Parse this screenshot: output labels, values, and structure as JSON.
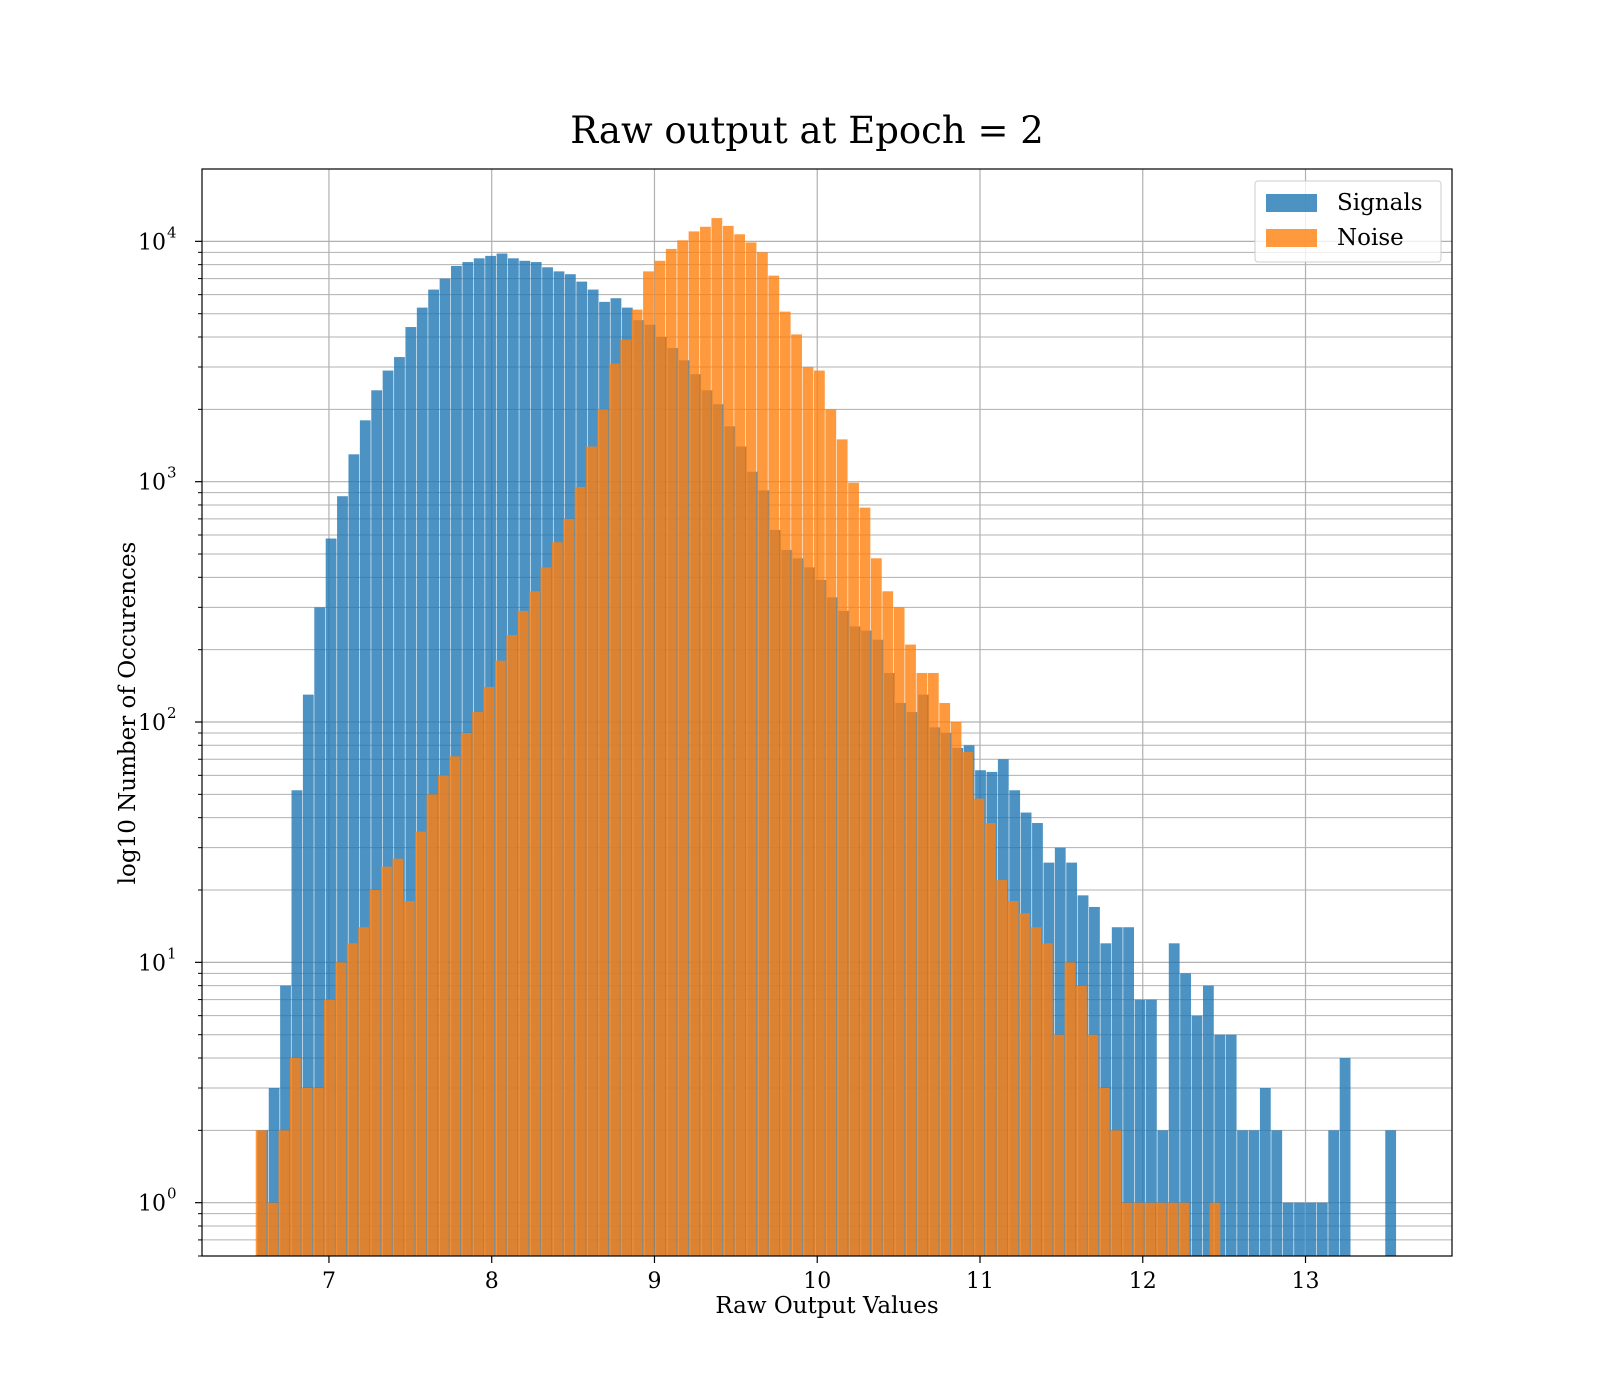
{
  "chart_data": {
    "type": "bar",
    "title": "Raw output at Epoch = 2",
    "xlabel": "Raw Output Values",
    "ylabel": "log10 Number of Occurences",
    "xlim": [
      6.22,
      13.9
    ],
    "ylim": [
      0.6,
      20000
    ],
    "yscale": "log",
    "grid": true,
    "grid_minor": true,
    "legend_position": "top-right",
    "x_ticks": [
      7,
      8,
      9,
      10,
      11,
      12,
      13
    ],
    "y_ticks": [
      {
        "value": 1,
        "base": "10",
        "exp": "0"
      },
      {
        "value": 10,
        "base": "10",
        "exp": "1"
      },
      {
        "value": 100,
        "base": "10",
        "exp": "2"
      },
      {
        "value": 1000,
        "base": "10",
        "exp": "3"
      },
      {
        "value": 10000,
        "base": "10",
        "exp": "4"
      }
    ],
    "series": [
      {
        "name": "Signals",
        "color": "#1f77b4",
        "opacity": 0.8,
        "bins": [
          [
            6.56,
            6.63,
            2
          ],
          [
            6.63,
            6.7,
            3
          ],
          [
            6.7,
            6.77,
            8
          ],
          [
            6.77,
            6.84,
            52
          ],
          [
            6.84,
            6.91,
            130
          ],
          [
            6.91,
            6.98,
            300
          ],
          [
            6.98,
            7.05,
            580
          ],
          [
            7.05,
            7.12,
            870
          ],
          [
            7.12,
            7.19,
            1300
          ],
          [
            7.19,
            7.26,
            1800
          ],
          [
            7.26,
            7.33,
            2400
          ],
          [
            7.33,
            7.4,
            2900
          ],
          [
            7.4,
            7.47,
            3300
          ],
          [
            7.47,
            7.54,
            4400
          ],
          [
            7.54,
            7.61,
            5300
          ],
          [
            7.61,
            7.68,
            6300
          ],
          [
            7.68,
            7.75,
            7000
          ],
          [
            7.75,
            7.82,
            7900
          ],
          [
            7.82,
            7.89,
            8200
          ],
          [
            7.89,
            7.96,
            8500
          ],
          [
            7.96,
            8.03,
            8700
          ],
          [
            8.03,
            8.1,
            8900
          ],
          [
            8.1,
            8.17,
            8500
          ],
          [
            8.17,
            8.24,
            8300
          ],
          [
            8.24,
            8.31,
            8200
          ],
          [
            8.31,
            8.38,
            7800
          ],
          [
            8.38,
            8.45,
            7500
          ],
          [
            8.45,
            8.52,
            7300
          ],
          [
            8.52,
            8.59,
            6800
          ],
          [
            8.59,
            8.66,
            6300
          ],
          [
            8.66,
            8.73,
            5600
          ],
          [
            8.73,
            8.8,
            5800
          ],
          [
            8.8,
            8.87,
            5300
          ],
          [
            8.87,
            8.94,
            4700
          ],
          [
            8.94,
            9.01,
            4500
          ],
          [
            9.01,
            9.08,
            4000
          ],
          [
            9.08,
            9.15,
            3600
          ],
          [
            9.15,
            9.22,
            3200
          ],
          [
            9.22,
            9.29,
            2800
          ],
          [
            9.29,
            9.36,
            2400
          ],
          [
            9.36,
            9.43,
            2100
          ],
          [
            9.43,
            9.5,
            1700
          ],
          [
            9.5,
            9.57,
            1400
          ],
          [
            9.57,
            9.64,
            1100
          ],
          [
            9.64,
            9.71,
            920
          ],
          [
            9.71,
            9.78,
            630
          ],
          [
            9.78,
            9.85,
            520
          ],
          [
            9.85,
            9.92,
            480
          ],
          [
            9.92,
            9.99,
            440
          ],
          [
            9.99,
            10.06,
            390
          ],
          [
            10.06,
            10.13,
            330
          ],
          [
            10.13,
            10.2,
            290
          ],
          [
            10.2,
            10.27,
            250
          ],
          [
            10.27,
            10.34,
            240
          ],
          [
            10.34,
            10.41,
            220
          ],
          [
            10.41,
            10.48,
            160
          ],
          [
            10.48,
            10.55,
            120
          ],
          [
            10.55,
            10.62,
            110
          ],
          [
            10.62,
            10.69,
            130
          ],
          [
            10.69,
            10.76,
            95
          ],
          [
            10.76,
            10.83,
            90
          ],
          [
            10.83,
            10.9,
            78
          ],
          [
            10.9,
            10.97,
            80
          ],
          [
            10.97,
            11.04,
            63
          ],
          [
            11.04,
            11.11,
            62
          ],
          [
            11.11,
            11.18,
            70
          ],
          [
            11.18,
            11.25,
            52
          ],
          [
            11.25,
            11.32,
            42
          ],
          [
            11.32,
            11.39,
            38
          ],
          [
            11.39,
            11.46,
            26
          ],
          [
            11.46,
            11.53,
            30
          ],
          [
            11.53,
            11.6,
            26
          ],
          [
            11.6,
            11.67,
            19
          ],
          [
            11.67,
            11.74,
            17
          ],
          [
            11.74,
            11.81,
            12
          ],
          [
            11.81,
            11.88,
            14
          ],
          [
            11.88,
            11.95,
            14
          ],
          [
            11.95,
            12.02,
            7
          ],
          [
            12.02,
            12.09,
            7
          ],
          [
            12.09,
            12.16,
            2
          ],
          [
            12.16,
            12.23,
            12
          ],
          [
            12.23,
            12.3,
            9
          ],
          [
            12.3,
            12.37,
            6
          ],
          [
            12.37,
            12.44,
            8
          ],
          [
            12.44,
            12.51,
            5
          ],
          [
            12.51,
            12.58,
            5
          ],
          [
            12.58,
            12.65,
            2
          ],
          [
            12.65,
            12.72,
            2
          ],
          [
            12.72,
            12.79,
            3
          ],
          [
            12.79,
            12.86,
            2
          ],
          [
            12.86,
            12.93,
            1
          ],
          [
            12.93,
            13.0,
            1
          ],
          [
            13.0,
            13.07,
            1
          ],
          [
            13.07,
            13.14,
            1
          ],
          [
            13.14,
            13.21,
            2
          ],
          [
            13.21,
            13.28,
            4
          ],
          [
            13.49,
            13.56,
            2
          ]
        ]
      },
      {
        "name": "Noise",
        "color": "#ff7f0e",
        "opacity": 0.8,
        "bins": [
          [
            6.55,
            6.62,
            2
          ],
          [
            6.62,
            6.69,
            1
          ],
          [
            6.69,
            6.76,
            2
          ],
          [
            6.76,
            6.83,
            4
          ],
          [
            6.83,
            6.9,
            3
          ],
          [
            6.9,
            6.97,
            3
          ],
          [
            6.97,
            7.04,
            7
          ],
          [
            7.04,
            7.11,
            10
          ],
          [
            7.11,
            7.18,
            12
          ],
          [
            7.18,
            7.25,
            14
          ],
          [
            7.25,
            7.32,
            20
          ],
          [
            7.32,
            7.39,
            25
          ],
          [
            7.39,
            7.46,
            27
          ],
          [
            7.46,
            7.53,
            18
          ],
          [
            7.53,
            7.6,
            35
          ],
          [
            7.6,
            7.67,
            50
          ],
          [
            7.67,
            7.74,
            60
          ],
          [
            7.74,
            7.81,
            72
          ],
          [
            7.81,
            7.88,
            90
          ],
          [
            7.88,
            7.95,
            110
          ],
          [
            7.95,
            8.02,
            140
          ],
          [
            8.02,
            8.09,
            180
          ],
          [
            8.09,
            8.16,
            230
          ],
          [
            8.16,
            8.23,
            290
          ],
          [
            8.23,
            8.3,
            350
          ],
          [
            8.3,
            8.37,
            440
          ],
          [
            8.37,
            8.44,
            560
          ],
          [
            8.44,
            8.51,
            700
          ],
          [
            8.51,
            8.58,
            950
          ],
          [
            8.58,
            8.65,
            1400
          ],
          [
            8.65,
            8.72,
            2000
          ],
          [
            8.72,
            8.79,
            3100
          ],
          [
            8.79,
            8.86,
            3900
          ],
          [
            8.86,
            8.93,
            5200
          ],
          [
            8.93,
            9.0,
            7500
          ],
          [
            9.0,
            9.07,
            8300
          ],
          [
            9.07,
            9.14,
            9300
          ],
          [
            9.14,
            9.21,
            10100
          ],
          [
            9.21,
            9.28,
            11000
          ],
          [
            9.28,
            9.35,
            11500
          ],
          [
            9.35,
            9.42,
            12500
          ],
          [
            9.42,
            9.49,
            11600
          ],
          [
            9.49,
            9.56,
            10700
          ],
          [
            9.56,
            9.63,
            9900
          ],
          [
            9.63,
            9.7,
            9000
          ],
          [
            9.7,
            9.77,
            7200
          ],
          [
            9.77,
            9.84,
            5100
          ],
          [
            9.84,
            9.91,
            4100
          ],
          [
            9.91,
            9.98,
            3000
          ],
          [
            9.98,
            10.05,
            2900
          ],
          [
            10.05,
            10.12,
            2000
          ],
          [
            10.12,
            10.19,
            1500
          ],
          [
            10.19,
            10.26,
            990
          ],
          [
            10.26,
            10.33,
            780
          ],
          [
            10.33,
            10.4,
            480
          ],
          [
            10.4,
            10.47,
            350
          ],
          [
            10.47,
            10.54,
            300
          ],
          [
            10.54,
            10.61,
            210
          ],
          [
            10.61,
            10.68,
            160
          ],
          [
            10.68,
            10.75,
            160
          ],
          [
            10.75,
            10.82,
            120
          ],
          [
            10.82,
            10.89,
            100
          ],
          [
            10.89,
            10.96,
            75
          ],
          [
            10.96,
            11.03,
            48
          ],
          [
            11.03,
            11.1,
            38
          ],
          [
            11.1,
            11.17,
            22
          ],
          [
            11.17,
            11.24,
            18
          ],
          [
            11.24,
            11.31,
            16
          ],
          [
            11.31,
            11.38,
            14
          ],
          [
            11.38,
            11.45,
            12
          ],
          [
            11.45,
            11.52,
            5
          ],
          [
            11.52,
            11.59,
            10
          ],
          [
            11.59,
            11.66,
            8
          ],
          [
            11.66,
            11.73,
            5
          ],
          [
            11.73,
            11.8,
            3
          ],
          [
            11.8,
            11.87,
            2
          ],
          [
            11.87,
            11.94,
            1
          ],
          [
            11.94,
            12.01,
            1
          ],
          [
            12.01,
            12.08,
            1
          ],
          [
            12.08,
            12.15,
            1
          ],
          [
            12.15,
            12.22,
            1
          ],
          [
            12.22,
            12.29,
            1
          ],
          [
            12.41,
            12.48,
            1
          ]
        ]
      }
    ]
  }
}
